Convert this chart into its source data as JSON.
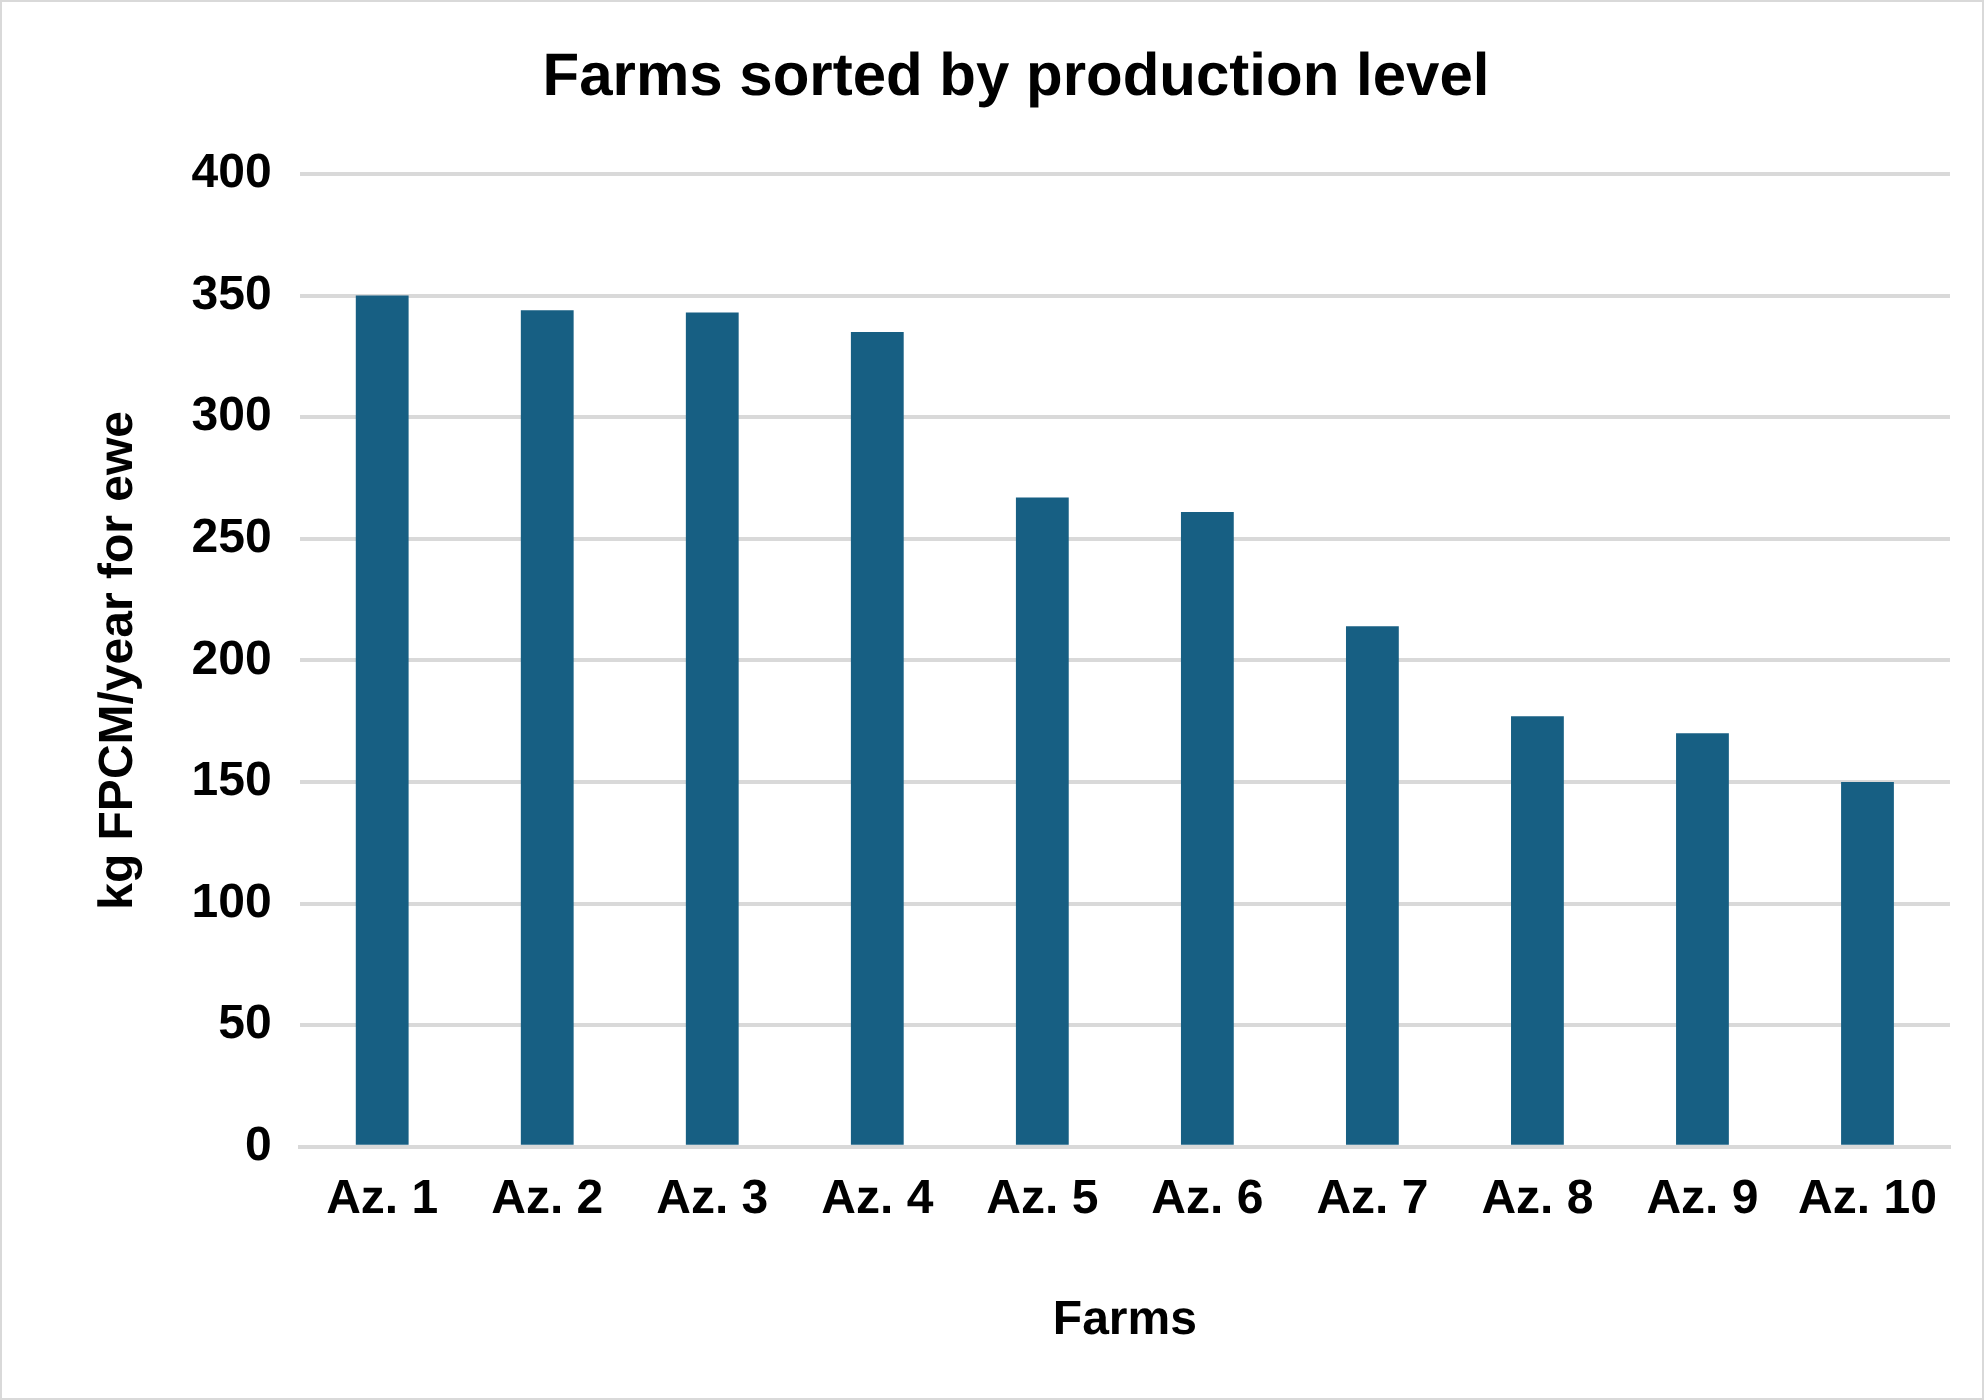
{
  "chart_data": {
    "type": "bar",
    "title": "Farms sorted by production level",
    "xlabel": "Farms",
    "ylabel": "kg FPCM/year for ewe",
    "categories": [
      "Az. 1",
      "Az. 2",
      "Az. 3",
      "Az. 4",
      "Az. 5",
      "Az. 6",
      "Az. 7",
      "Az. 8",
      "Az. 9",
      "Az. 10"
    ],
    "values": [
      350,
      344,
      343,
      335,
      267,
      261,
      214,
      177,
      170,
      150
    ],
    "color": "#175f83",
    "ylim": [
      0,
      400
    ],
    "yticks": [
      0,
      50,
      100,
      150,
      200,
      250,
      300,
      350,
      400
    ],
    "grid": "y"
  }
}
